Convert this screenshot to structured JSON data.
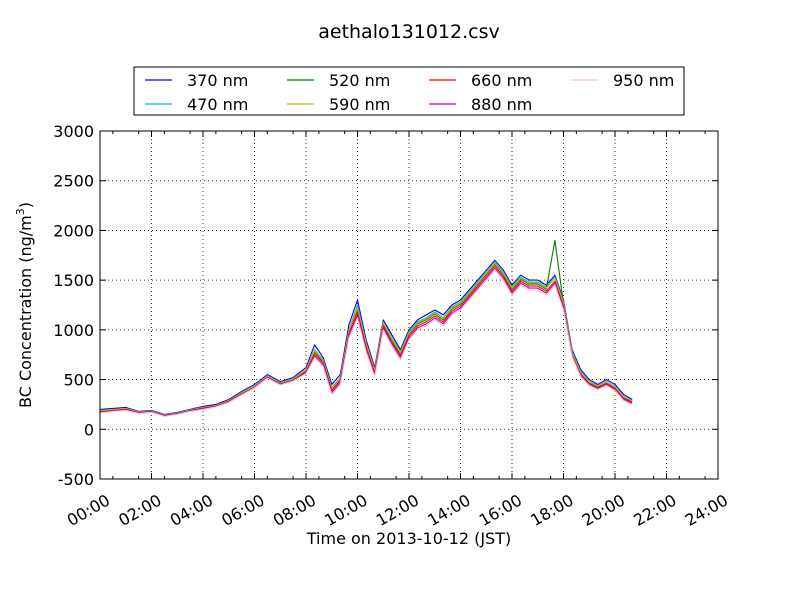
{
  "chart_data": {
    "type": "line",
    "title": "aethalo131012.csv",
    "xlabel": "Time on 2013-10-12 (JST)",
    "ylabel": "BC Concentration (ng/m",
    "ylabel_sup": "3",
    "ylabel_end": ")",
    "xlim": [
      "00:00",
      "24:00"
    ],
    "ylim": [
      -500,
      3000
    ],
    "grid": true,
    "legend_position": "top",
    "x_ticks": [
      "00:00",
      "02:00",
      "04:00",
      "06:00",
      "08:00",
      "10:00",
      "12:00",
      "14:00",
      "16:00",
      "18:00",
      "20:00",
      "22:00",
      "24:00"
    ],
    "y_ticks": [
      "-500",
      "0",
      "500",
      "1000",
      "1500",
      "2000",
      "2500",
      "3000"
    ],
    "x": [
      "00:00",
      "00:30",
      "01:00",
      "01:30",
      "02:00",
      "02:30",
      "03:00",
      "03:30",
      "04:00",
      "04:30",
      "05:00",
      "05:30",
      "06:00",
      "06:30",
      "07:00",
      "07:30",
      "08:00",
      "08:20",
      "08:40",
      "09:00",
      "09:20",
      "09:40",
      "10:00",
      "10:20",
      "10:40",
      "11:00",
      "11:20",
      "11:40",
      "12:00",
      "12:20",
      "12:40",
      "13:00",
      "13:20",
      "13:40",
      "14:00",
      "14:20",
      "14:40",
      "15:00",
      "15:20",
      "15:40",
      "16:00",
      "16:20",
      "16:40",
      "17:00",
      "17:20",
      "17:40",
      "18:00",
      "18:20",
      "18:40",
      "19:00",
      "19:20",
      "19:40",
      "20:00",
      "20:20",
      "20:40"
    ],
    "series": [
      {
        "name": "370 nm",
        "color": "#0000ff",
        "values": [
          200,
          210,
          220,
          180,
          190,
          150,
          170,
          200,
          230,
          250,
          300,
          380,
          450,
          550,
          480,
          520,
          620,
          850,
          720,
          450,
          550,
          1050,
          1300,
          900,
          620,
          1100,
          950,
          800,
          1000,
          1100,
          1150,
          1200,
          1150,
          1250,
          1300,
          1400,
          1500,
          1600,
          1700,
          1600,
          1450,
          1550,
          1500,
          1500,
          1450,
          1550,
          1300,
          800,
          600,
          500,
          450,
          500,
          450,
          350,
          300
        ]
      },
      {
        "name": "470 nm",
        "color": "#00bfbf",
        "values": [
          190,
          200,
          210,
          175,
          185,
          145,
          165,
          195,
          220,
          240,
          290,
          370,
          440,
          540,
          470,
          510,
          600,
          800,
          700,
          420,
          520,
          1000,
          1250,
          870,
          600,
          1080,
          920,
          780,
          980,
          1080,
          1120,
          1180,
          1120,
          1230,
          1280,
          1380,
          1480,
          1580,
          1680,
          1580,
          1430,
          1530,
          1480,
          1480,
          1430,
          1530,
          1280,
          780,
          580,
          480,
          440,
          480,
          430,
          330,
          290
        ]
      },
      {
        "name": "520 nm",
        "color": "#008000",
        "values": [
          180,
          195,
          205,
          170,
          180,
          140,
          160,
          190,
          215,
          235,
          285,
          360,
          430,
          530,
          460,
          500,
          590,
          780,
          680,
          400,
          500,
          980,
          1200,
          850,
          580,
          1060,
          900,
          760,
          960,
          1060,
          1100,
          1160,
          1100,
          1210,
          1260,
          1360,
          1460,
          1560,
          1660,
          1560,
          1410,
          1510,
          1460,
          1460,
          1410,
          1900,
          1260,
          760,
          560,
          470,
          430,
          470,
          420,
          320,
          280
        ]
      },
      {
        "name": "590 nm",
        "color": "#bfbf00",
        "values": [
          185,
          198,
          208,
          172,
          182,
          142,
          162,
          192,
          218,
          238,
          288,
          365,
          435,
          535,
          465,
          505,
          595,
          790,
          690,
          410,
          510,
          990,
          1220,
          860,
          590,
          1070,
          910,
          770,
          970,
          1070,
          1110,
          1170,
          1110,
          1220,
          1270,
          1370,
          1470,
          1570,
          1670,
          1570,
          1420,
          1520,
          1470,
          1470,
          1420,
          1520,
          1270,
          770,
          570,
          475,
          435,
          475,
          425,
          325,
          285
        ]
      },
      {
        "name": "660 nm",
        "color": "#ff0000",
        "values": [
          175,
          190,
          200,
          168,
          178,
          138,
          158,
          188,
          212,
          232,
          280,
          355,
          425,
          525,
          455,
          495,
          580,
          760,
          670,
          390,
          490,
          960,
          1180,
          830,
          570,
          1040,
          880,
          740,
          940,
          1040,
          1080,
          1140,
          1080,
          1190,
          1240,
          1340,
          1440,
          1540,
          1640,
          1540,
          1390,
          1490,
          1440,
          1440,
          1390,
          1490,
          1240,
          750,
          550,
          460,
          420,
          460,
          410,
          310,
          270
        ]
      },
      {
        "name": "880 nm",
        "color": "#bf00bf",
        "values": [
          170,
          185,
          195,
          165,
          175,
          135,
          155,
          185,
          205,
          228,
          275,
          350,
          420,
          520,
          450,
          490,
          570,
          740,
          650,
          370,
          470,
          940,
          1150,
          800,
          550,
          1020,
          860,
          720,
          920,
          1020,
          1060,
          1120,
          1060,
          1170,
          1220,
          1320,
          1420,
          1520,
          1620,
          1520,
          1370,
          1470,
          1420,
          1420,
          1370,
          1470,
          1220,
          740,
          540,
          450,
          410,
          450,
          400,
          300,
          260
        ]
      },
      {
        "name": "950 nm",
        "color": "#ffc0cb",
        "values": [
          165,
          180,
          190,
          160,
          170,
          130,
          150,
          180,
          200,
          225,
          270,
          345,
          415,
          515,
          445,
          485,
          560,
          720,
          630,
          350,
          450,
          920,
          1120,
          780,
          530,
          1000,
          840,
          700,
          900,
          1000,
          1040,
          1100,
          1040,
          1150,
          1200,
          1300,
          1400,
          1500,
          1600,
          1500,
          1350,
          1450,
          1400,
          1400,
          1350,
          1450,
          1200,
          730,
          530,
          440,
          400,
          440,
          390,
          290,
          250
        ]
      }
    ]
  }
}
